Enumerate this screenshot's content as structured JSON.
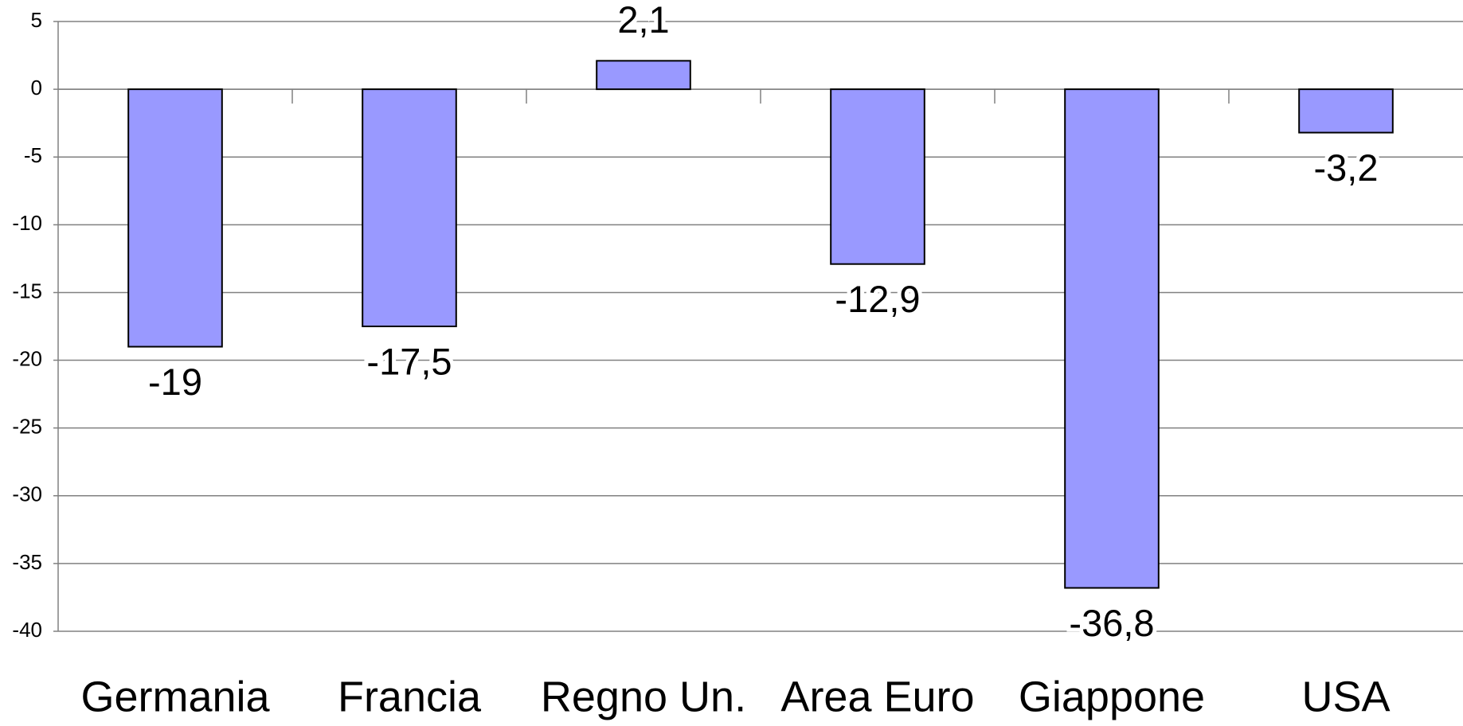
{
  "chart_data": {
    "type": "bar",
    "categories": [
      "Germania",
      "Francia",
      "Regno Un.",
      "Area Euro",
      "Giappone",
      "USA"
    ],
    "values": [
      -19,
      -17.5,
      2.1,
      -12.9,
      -36.8,
      -3.2
    ],
    "value_labels": [
      "-19",
      "-17,5",
      "2,1",
      "-12,9",
      "-36,8",
      "-3,2"
    ],
    "color": "#9999ff",
    "ylim": [
      -40,
      5
    ],
    "yticks": [
      5,
      0,
      -5,
      -10,
      -15,
      -20,
      -25,
      -30,
      -35,
      -40
    ],
    "grid": true
  }
}
